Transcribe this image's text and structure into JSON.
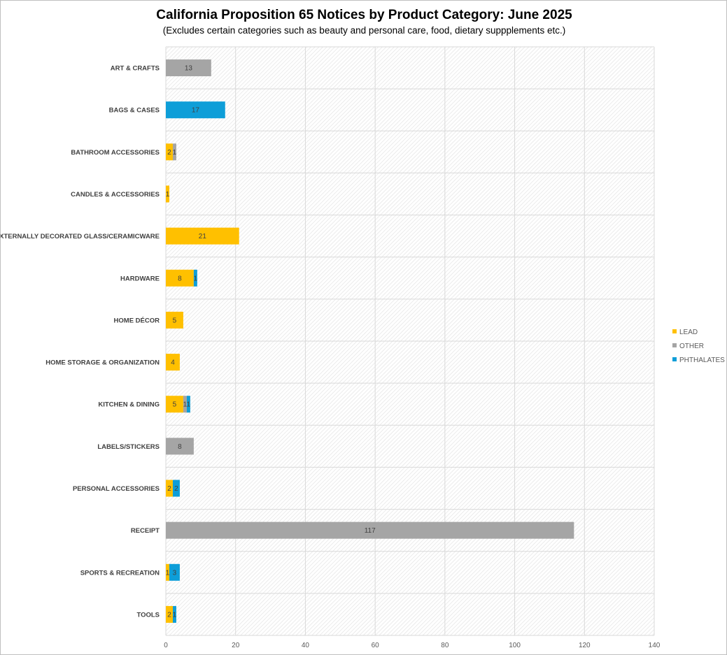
{
  "chart_data": {
    "type": "bar",
    "orientation": "horizontal",
    "stacked": true,
    "title": "California Proposition 65 Notices by Product Category: June 2025",
    "subtitle": "(Excludes certain categories such as beauty and personal care, food, dietary suppplements etc.)",
    "xlabel": "",
    "ylabel": "",
    "xlim": [
      0,
      140
    ],
    "xticks": [
      0,
      20,
      40,
      60,
      80,
      100,
      120,
      140
    ],
    "grid": true,
    "legend_position": "right",
    "categories": [
      "ART & CRAFTS",
      "BAGS & CASES",
      "BATHROOM ACCESSORIES",
      "CANDLES & ACCESSORIES",
      "EXTERNALLY DECORATED GLASS/CERAMICWARE",
      "HARDWARE",
      "HOME DÉCOR",
      "HOME STORAGE & ORGANIZATION",
      "KITCHEN & DINING",
      "LABELS/STICKERS",
      "PERSONAL ACCESSORIES",
      "RECEIPT",
      "SPORTS & RECREATION",
      "TOOLS"
    ],
    "series": [
      {
        "name": "LEAD",
        "color": "#FFC000",
        "values": [
          null,
          null,
          2,
          1,
          21,
          8,
          5,
          4,
          5,
          null,
          2,
          null,
          1,
          2
        ]
      },
      {
        "name": "OTHER",
        "color": "#A5A5A5",
        "values": [
          13,
          null,
          1,
          null,
          null,
          null,
          null,
          null,
          1,
          8,
          null,
          117,
          null,
          null
        ]
      },
      {
        "name": "PHTHALATES",
        "color": "#0E9ED8",
        "values": [
          null,
          17,
          null,
          null,
          null,
          1,
          null,
          null,
          1,
          null,
          2,
          null,
          3,
          1
        ]
      }
    ]
  }
}
